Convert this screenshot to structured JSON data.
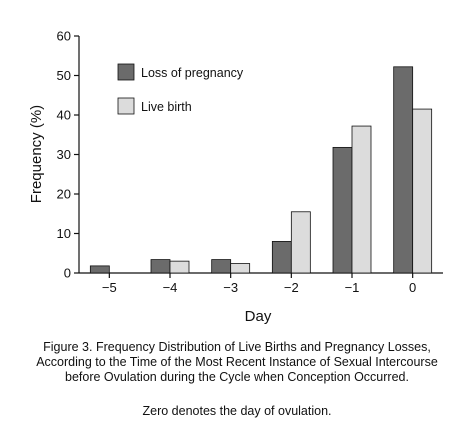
{
  "chart_data": {
    "type": "bar",
    "categories": [
      "−5",
      "−4",
      "−3",
      "−2",
      "−1",
      "0"
    ],
    "series": [
      {
        "name": "Loss of pregnancy",
        "values": [
          1.8,
          3.4,
          3.4,
          8.0,
          31.8,
          52.2
        ],
        "color": "#6b6b6b"
      },
      {
        "name": "Live birth",
        "values": [
          0,
          3.0,
          2.4,
          15.5,
          37.2,
          41.5
        ],
        "color": "#dcdcdc"
      }
    ],
    "title": "",
    "xlabel": "Day",
    "ylabel": "Frequency (%)",
    "ylim": [
      0,
      60
    ],
    "yticks": [
      "0",
      "10",
      "20",
      "30",
      "40",
      "50",
      "60"
    ],
    "grid": false,
    "legend_position": "top-left"
  },
  "caption": {
    "text": "Figure 3. Frequency Distribution of Live Births and Pregnancy Losses, According to the Time of the Most Recent Instance of Sexual Intercourse before Ovulation during the Cycle when Conception Occurred.",
    "note": "Zero denotes the day of ovulation."
  }
}
